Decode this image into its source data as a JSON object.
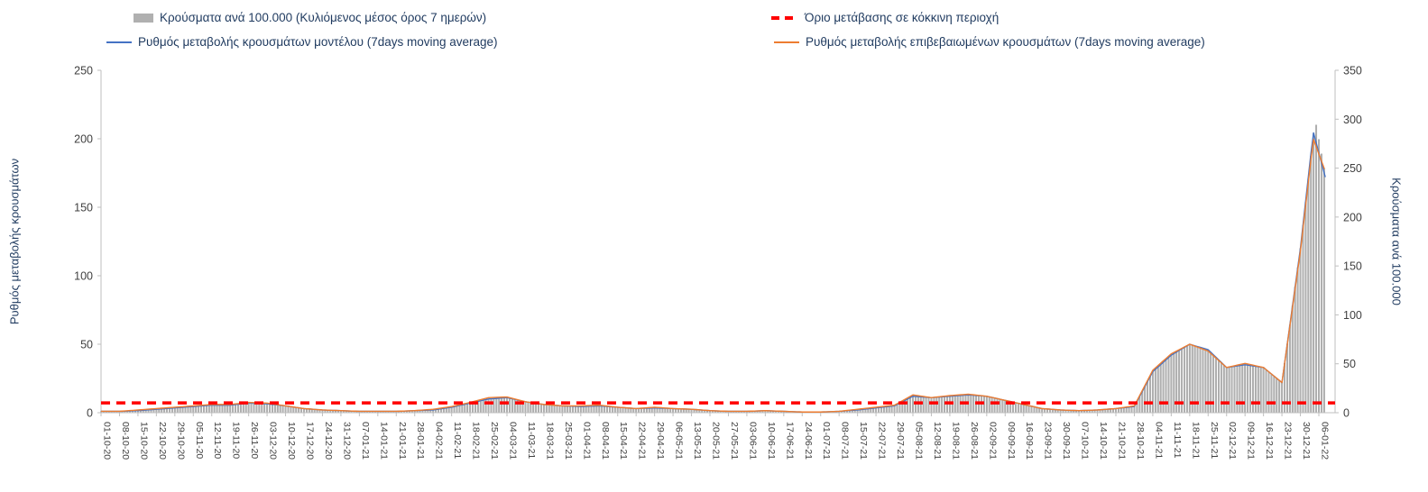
{
  "colors": {
    "bars": "#b0b0b0",
    "bar_stroke": "#979797",
    "threshold": "#ff0000",
    "model_line": "#4472c4",
    "confirmed_line": "#ed7d31",
    "axis": "#bfbfbf",
    "tick_text": "#404040",
    "title_text": "#1f3a5f"
  },
  "chart_data": {
    "type": "combo bar + line (dual axis)",
    "grid": "off",
    "legend_position": "top",
    "x_labels": [
      "01-10-20",
      "08-10-20",
      "15-10-20",
      "22-10-20",
      "29-10-20",
      "05-11-20",
      "12-11-20",
      "19-11-20",
      "26-11-20",
      "03-12-20",
      "10-12-20",
      "17-12-20",
      "24-12-20",
      "31-12-20",
      "07-01-21",
      "14-01-21",
      "21-01-21",
      "28-01-21",
      "04-02-21",
      "11-02-21",
      "18-02-21",
      "25-02-21",
      "04-03-21",
      "11-03-21",
      "18-03-21",
      "25-03-21",
      "01-04-21",
      "08-04-21",
      "15-04-21",
      "22-04-21",
      "29-04-21",
      "06-05-21",
      "13-05-21",
      "20-05-21",
      "27-05-21",
      "03-06-21",
      "10-06-21",
      "17-06-21",
      "24-06-21",
      "01-07-21",
      "08-07-21",
      "15-07-21",
      "22-07-21",
      "29-07-21",
      "05-08-21",
      "12-08-21",
      "19-08-21",
      "26-08-21",
      "02-09-21",
      "09-09-21",
      "16-09-21",
      "23-09-21",
      "30-09-21",
      "07-10-21",
      "14-10-21",
      "21-10-21",
      "28-10-21",
      "04-11-21",
      "11-11-21",
      "18-11-21",
      "25-11-21",
      "02-12-21",
      "09-12-21",
      "16-12-21",
      "23-12-21",
      "30-12-21",
      "06-01-22"
    ],
    "left_axis": {
      "title": "Ρυθμός μεταβολής κρουσμάτων",
      "ticks": [
        0,
        50,
        100,
        150,
        200,
        250
      ],
      "max": 250
    },
    "right_axis": {
      "title": "Κρούσματα ανά 100.000",
      "ticks": [
        0,
        50,
        100,
        150,
        200,
        250,
        300,
        350
      ],
      "max": 350
    },
    "bars": {
      "name": "Κρούσματα ανά 100.000 (Κυλιόμενος μέσος όρος 7 ημερών)",
      "axis": "right",
      "points": [
        [
          0,
          1.5
        ],
        [
          1,
          1.5
        ],
        [
          2,
          2
        ],
        [
          3,
          3.5
        ],
        [
          4,
          5
        ],
        [
          5,
          6.5
        ],
        [
          6,
          8
        ],
        [
          7,
          8
        ],
        [
          8,
          10
        ],
        [
          9,
          9
        ],
        [
          10,
          7
        ],
        [
          11,
          4
        ],
        [
          12,
          3
        ],
        [
          13,
          2
        ],
        [
          14,
          1.5
        ],
        [
          15,
          1.5
        ],
        [
          16,
          1.5
        ],
        [
          17,
          2
        ],
        [
          18,
          3
        ],
        [
          19,
          5.5
        ],
        [
          20,
          10
        ],
        [
          21,
          14
        ],
        [
          22,
          15.5
        ],
        [
          23,
          11
        ],
        [
          24,
          8.5
        ],
        [
          25,
          7
        ],
        [
          26,
          6.5
        ],
        [
          27,
          7
        ],
        [
          28,
          5.5
        ],
        [
          29,
          4
        ],
        [
          30,
          5
        ],
        [
          31,
          4
        ],
        [
          32,
          3.5
        ],
        [
          33,
          2
        ],
        [
          34,
          1.5
        ],
        [
          35,
          1.5
        ],
        [
          36,
          2
        ],
        [
          37,
          1.5
        ],
        [
          38,
          1
        ],
        [
          39,
          1
        ],
        [
          40,
          1.5
        ],
        [
          41,
          3
        ],
        [
          42,
          5
        ],
        [
          43,
          7
        ],
        [
          44,
          17
        ],
        [
          45,
          15.5
        ],
        [
          46,
          17
        ],
        [
          47,
          18.5
        ],
        [
          48,
          17
        ],
        [
          49,
          12.5
        ],
        [
          50,
          8.5
        ],
        [
          51,
          4
        ],
        [
          52,
          3
        ],
        [
          53,
          2
        ],
        [
          54,
          3
        ],
        [
          55,
          4.5
        ],
        [
          56,
          6.5
        ],
        [
          57,
          42
        ],
        [
          58,
          59
        ],
        [
          59,
          70
        ],
        [
          60,
          64
        ],
        [
          61,
          46
        ],
        [
          62,
          50
        ],
        [
          63,
          46
        ],
        [
          64,
          31
        ],
        [
          65,
          168
        ],
        [
          65.8,
          300
        ],
        [
          66.4,
          238
        ]
      ]
    },
    "threshold": {
      "name": "Όριο μετάβασης σε κόκκινη περιοχή",
      "axis": "right",
      "value": 10,
      "style": "dashed"
    },
    "series": [
      {
        "name": "Ρυθμός μεταβολής κρουσμάτων μοντέλου (7days moving average)",
        "axis": "left",
        "color": "#4472c4",
        "points": [
          [
            0,
            1
          ],
          [
            1,
            1
          ],
          [
            2,
            1.5
          ],
          [
            3,
            2.5
          ],
          [
            4,
            3.5
          ],
          [
            5,
            4.5
          ],
          [
            6,
            5.5
          ],
          [
            7,
            5.5
          ],
          [
            8,
            7
          ],
          [
            9,
            6.5
          ],
          [
            10,
            5
          ],
          [
            11,
            3
          ],
          [
            12,
            2
          ],
          [
            13,
            1.5
          ],
          [
            14,
            1
          ],
          [
            15,
            1
          ],
          [
            16,
            1
          ],
          [
            17,
            1.5
          ],
          [
            18,
            2
          ],
          [
            19,
            4
          ],
          [
            20,
            7
          ],
          [
            21,
            10
          ],
          [
            22,
            11
          ],
          [
            23,
            8
          ],
          [
            24,
            6
          ],
          [
            25,
            5
          ],
          [
            26,
            4.5
          ],
          [
            27,
            5
          ],
          [
            28,
            4
          ],
          [
            29,
            3
          ],
          [
            30,
            3.5
          ],
          [
            31,
            3
          ],
          [
            32,
            2.5
          ],
          [
            33,
            1.5
          ],
          [
            34,
            1
          ],
          [
            35,
            1
          ],
          [
            36,
            1.5
          ],
          [
            37,
            1
          ],
          [
            38,
            0.5
          ],
          [
            39,
            0.5
          ],
          [
            40,
            1
          ],
          [
            41,
            2
          ],
          [
            42,
            3.5
          ],
          [
            43,
            5
          ],
          [
            44,
            12
          ],
          [
            45,
            11
          ],
          [
            46,
            12
          ],
          [
            47,
            13
          ],
          [
            48,
            12
          ],
          [
            49,
            9
          ],
          [
            50,
            6
          ],
          [
            51,
            3
          ],
          [
            52,
            2
          ],
          [
            53,
            1.5
          ],
          [
            54,
            2
          ],
          [
            55,
            3
          ],
          [
            56,
            4.5
          ],
          [
            57,
            30
          ],
          [
            58,
            42
          ],
          [
            59,
            50
          ],
          [
            60,
            46
          ],
          [
            61,
            33
          ],
          [
            62,
            35
          ],
          [
            63,
            33
          ],
          [
            64,
            22
          ],
          [
            65,
            120
          ],
          [
            65.7,
            205
          ],
          [
            66.35,
            172
          ]
        ]
      },
      {
        "name": "Ρυθμός μεταβολής επιβεβαιωμένων κρουσμάτων (7days moving average)",
        "axis": "left",
        "color": "#ed7d31",
        "points": [
          [
            0,
            1
          ],
          [
            1,
            1
          ],
          [
            2,
            2
          ],
          [
            3,
            3
          ],
          [
            4,
            4
          ],
          [
            5,
            5
          ],
          [
            6,
            6
          ],
          [
            7,
            6
          ],
          [
            8,
            7.5
          ],
          [
            9,
            7
          ],
          [
            10,
            5
          ],
          [
            11,
            3
          ],
          [
            12,
            2
          ],
          [
            13,
            1.5
          ],
          [
            14,
            1
          ],
          [
            15,
            1
          ],
          [
            16,
            1
          ],
          [
            17,
            1.5
          ],
          [
            18,
            2.5
          ],
          [
            19,
            4.5
          ],
          [
            20,
            7.5
          ],
          [
            21,
            11
          ],
          [
            22,
            11.5
          ],
          [
            23,
            8
          ],
          [
            24,
            6
          ],
          [
            25,
            5
          ],
          [
            26,
            5
          ],
          [
            27,
            5.5
          ],
          [
            28,
            4
          ],
          [
            29,
            3
          ],
          [
            30,
            4
          ],
          [
            31,
            3
          ],
          [
            32,
            2.5
          ],
          [
            33,
            1.5
          ],
          [
            34,
            1
          ],
          [
            35,
            1
          ],
          [
            36,
            1.5
          ],
          [
            37,
            1
          ],
          [
            38,
            0.5
          ],
          [
            39,
            0.5
          ],
          [
            40,
            1
          ],
          [
            41,
            2.5
          ],
          [
            42,
            4
          ],
          [
            43,
            5.5
          ],
          [
            44,
            13
          ],
          [
            45,
            11
          ],
          [
            46,
            12.5
          ],
          [
            47,
            13.5
          ],
          [
            48,
            12
          ],
          [
            49,
            9
          ],
          [
            50,
            6
          ],
          [
            51,
            3
          ],
          [
            52,
            2
          ],
          [
            53,
            1.5
          ],
          [
            54,
            2
          ],
          [
            55,
            3
          ],
          [
            56,
            5
          ],
          [
            57,
            31
          ],
          [
            58,
            43
          ],
          [
            59,
            50
          ],
          [
            60,
            45
          ],
          [
            61,
            33
          ],
          [
            62,
            36
          ],
          [
            63,
            33
          ],
          [
            64,
            22
          ],
          [
            65,
            118
          ],
          [
            65.7,
            200
          ],
          [
            66.3,
            178
          ]
        ]
      }
    ]
  }
}
